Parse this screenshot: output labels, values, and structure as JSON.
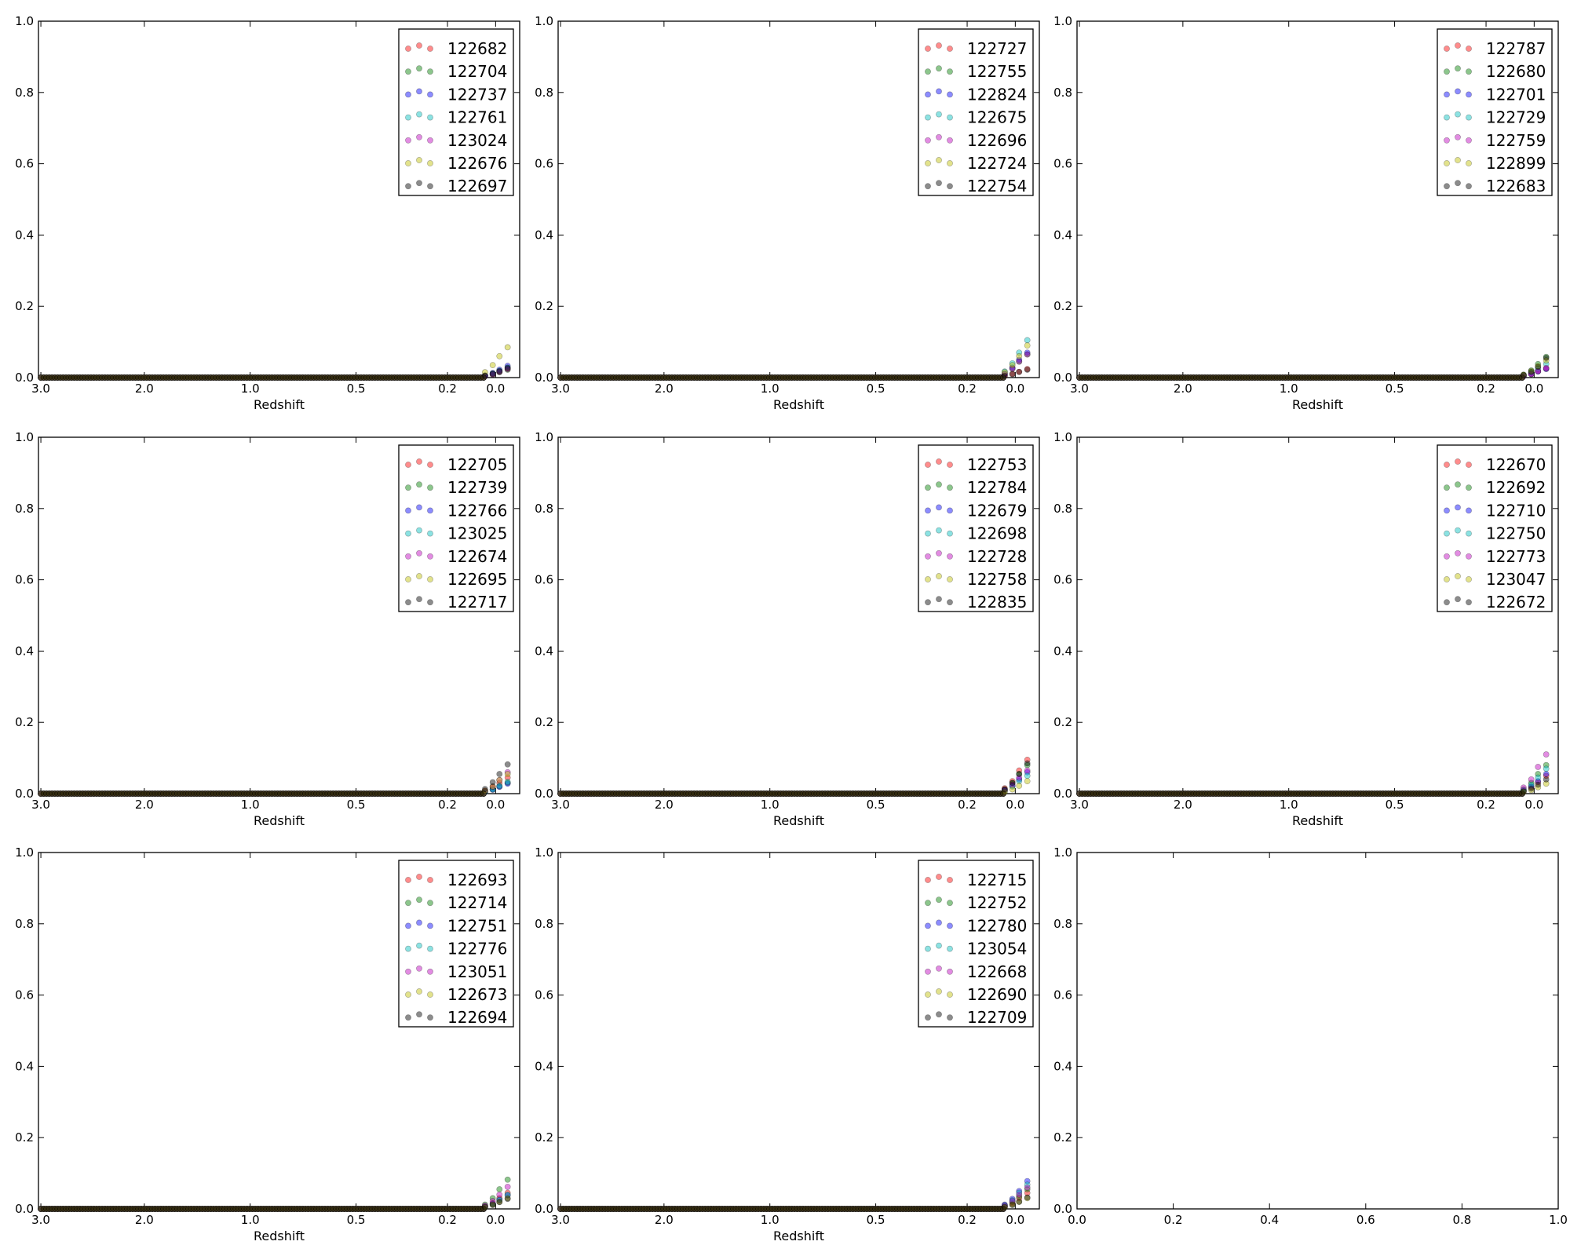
{
  "chart_data": [
    {
      "type": "scatter",
      "xlabel": "Redshift",
      "ylim": [
        0,
        1
      ],
      "x_ticks": [
        "3.0",
        "2.0",
        "1.0",
        "0.5",
        "0.2",
        "0.0"
      ],
      "y_ticks": [
        "0.0",
        "0.2",
        "0.4",
        "0.6",
        "0.8",
        "1.0"
      ],
      "legend": "top-right",
      "series": [
        {
          "name": "122682",
          "color": "#ff0000",
          "values": [
            0.005,
            0.01,
            0.017,
            0.025
          ]
        },
        {
          "name": "122704",
          "color": "#008000",
          "values": [
            0.004,
            0.009,
            0.015,
            0.022
          ]
        },
        {
          "name": "122737",
          "color": "#0000ff",
          "values": [
            0.006,
            0.013,
            0.022,
            0.033
          ]
        },
        {
          "name": "122761",
          "color": "#00bfbf",
          "values": [
            0.005,
            0.011,
            0.019,
            0.028
          ]
        },
        {
          "name": "123024",
          "color": "#bf00bf",
          "values": [
            0.004,
            0.009,
            0.016,
            0.024
          ]
        },
        {
          "name": "122676",
          "color": "#bfbf00",
          "values": [
            0.015,
            0.035,
            0.06,
            0.085
          ]
        },
        {
          "name": "122697",
          "color": "#000000",
          "values": [
            0.005,
            0.011,
            0.018,
            0.027
          ]
        }
      ]
    },
    {
      "type": "scatter",
      "xlabel": "Redshift",
      "ylim": [
        0,
        1
      ],
      "x_ticks": [
        "3.0",
        "2.0",
        "1.0",
        "0.5",
        "0.2",
        "0.0"
      ],
      "y_ticks": [
        "0.0",
        "0.2",
        "0.4",
        "0.6",
        "0.8",
        "1.0"
      ],
      "legend": "top-right",
      "series": [
        {
          "name": "122727",
          "color": "#ff0000",
          "values": [
            0.005,
            0.01,
            0.016,
            0.024
          ]
        },
        {
          "name": "122755",
          "color": "#008000",
          "values": [
            0.01,
            0.025,
            0.045,
            0.065
          ]
        },
        {
          "name": "122824",
          "color": "#0000ff",
          "values": [
            0.011,
            0.028,
            0.05,
            0.07
          ]
        },
        {
          "name": "122675",
          "color": "#00bfbf",
          "values": [
            0.017,
            0.04,
            0.07,
            0.105
          ]
        },
        {
          "name": "122696",
          "color": "#bf00bf",
          "values": [
            0.01,
            0.025,
            0.045,
            0.065
          ]
        },
        {
          "name": "122724",
          "color": "#bfbf00",
          "values": [
            0.015,
            0.035,
            0.06,
            0.09
          ]
        },
        {
          "name": "122754",
          "color": "#000000",
          "values": [
            0.005,
            0.01,
            0.016,
            0.022
          ]
        }
      ]
    },
    {
      "type": "scatter",
      "xlabel": "Redshift",
      "ylim": [
        0,
        1
      ],
      "x_ticks": [
        "3.0",
        "2.0",
        "1.0",
        "0.5",
        "0.2",
        "0.0"
      ],
      "y_ticks": [
        "0.0",
        "0.2",
        "0.4",
        "0.6",
        "0.8",
        "1.0"
      ],
      "legend": "top-right",
      "series": [
        {
          "name": "122787",
          "color": "#ff0000",
          "values": [
            0.004,
            0.01,
            0.018,
            0.025
          ]
        },
        {
          "name": "122680",
          "color": "#008000",
          "values": [
            0.008,
            0.02,
            0.038,
            0.058
          ]
        },
        {
          "name": "122701",
          "color": "#0000ff",
          "values": [
            0.004,
            0.01,
            0.017,
            0.024
          ]
        },
        {
          "name": "122729",
          "color": "#00bfbf",
          "values": [
            0.006,
            0.014,
            0.025,
            0.038
          ]
        },
        {
          "name": "122759",
          "color": "#bf00bf",
          "values": [
            0.005,
            0.01,
            0.018,
            0.027
          ]
        },
        {
          "name": "122899",
          "color": "#bfbf00",
          "values": [
            0.008,
            0.018,
            0.032,
            0.048
          ]
        },
        {
          "name": "122683",
          "color": "#000000",
          "values": [
            0.007,
            0.016,
            0.03,
            0.055
          ]
        }
      ]
    },
    {
      "type": "scatter",
      "xlabel": "Redshift",
      "ylim": [
        0,
        1
      ],
      "x_ticks": [
        "3.0",
        "2.0",
        "1.0",
        "0.5",
        "0.2",
        "0.0"
      ],
      "y_ticks": [
        "0.0",
        "0.2",
        "0.4",
        "0.6",
        "0.8",
        "1.0"
      ],
      "legend": "top-right",
      "series": [
        {
          "name": "122705",
          "color": "#ff0000",
          "values": [
            0.007,
            0.017,
            0.03,
            0.045
          ]
        },
        {
          "name": "122739",
          "color": "#008000",
          "values": [
            0.005,
            0.012,
            0.02,
            0.03
          ]
        },
        {
          "name": "122766",
          "color": "#0000ff",
          "values": [
            0.005,
            0.011,
            0.019,
            0.028
          ]
        },
        {
          "name": "123025",
          "color": "#00bfbf",
          "values": [
            0.005,
            0.012,
            0.022,
            0.033
          ]
        },
        {
          "name": "122674",
          "color": "#bf00bf",
          "values": [
            0.008,
            0.02,
            0.038,
            0.06
          ]
        },
        {
          "name": "122695",
          "color": "#bfbf00",
          "values": [
            0.008,
            0.02,
            0.038,
            0.055
          ]
        },
        {
          "name": "122717",
          "color": "#000000",
          "values": [
            0.013,
            0.032,
            0.055,
            0.082
          ]
        }
      ]
    },
    {
      "type": "scatter",
      "xlabel": "Redshift",
      "ylim": [
        0,
        1
      ],
      "x_ticks": [
        "3.0",
        "2.0",
        "1.0",
        "0.5",
        "0.2",
        "0.0"
      ],
      "y_ticks": [
        "0.0",
        "0.2",
        "0.4",
        "0.6",
        "0.8",
        "1.0"
      ],
      "legend": "top-right",
      "series": [
        {
          "name": "122753",
          "color": "#ff0000",
          "values": [
            0.015,
            0.035,
            0.065,
            0.095
          ]
        },
        {
          "name": "122784",
          "color": "#008000",
          "values": [
            0.012,
            0.03,
            0.055,
            0.08
          ]
        },
        {
          "name": "122679",
          "color": "#0000ff",
          "values": [
            0.009,
            0.022,
            0.04,
            0.06
          ]
        },
        {
          "name": "122698",
          "color": "#00bfbf",
          "values": [
            0.008,
            0.02,
            0.035,
            0.05
          ]
        },
        {
          "name": "122728",
          "color": "#bf00bf",
          "values": [
            0.01,
            0.025,
            0.045,
            0.065
          ]
        },
        {
          "name": "122758",
          "color": "#bfbf00",
          "values": [
            0.005,
            0.012,
            0.022,
            0.035
          ]
        },
        {
          "name": "122835",
          "color": "#000000",
          "values": [
            0.012,
            0.03,
            0.055,
            0.085
          ]
        }
      ]
    },
    {
      "type": "scatter",
      "xlabel": "Redshift",
      "ylim": [
        0,
        1
      ],
      "x_ticks": [
        "3.0",
        "2.0",
        "1.0",
        "0.5",
        "0.2",
        "0.0"
      ],
      "y_ticks": [
        "0.0",
        "0.2",
        "0.4",
        "0.6",
        "0.8",
        "1.0"
      ],
      "legend": "top-right",
      "series": [
        {
          "name": "122670",
          "color": "#ff0000",
          "values": [
            0.008,
            0.018,
            0.032,
            0.05
          ]
        },
        {
          "name": "122692",
          "color": "#008000",
          "values": [
            0.012,
            0.03,
            0.055,
            0.08
          ]
        },
        {
          "name": "122710",
          "color": "#0000ff",
          "values": [
            0.008,
            0.02,
            0.035,
            0.055
          ]
        },
        {
          "name": "122750",
          "color": "#00bfbf",
          "values": [
            0.01,
            0.025,
            0.045,
            0.07
          ]
        },
        {
          "name": "122773",
          "color": "#bf00bf",
          "values": [
            0.017,
            0.04,
            0.075,
            0.11
          ]
        },
        {
          "name": "123047",
          "color": "#bfbf00",
          "values": [
            0.005,
            0.01,
            0.018,
            0.028
          ]
        },
        {
          "name": "122672",
          "color": "#000000",
          "values": [
            0.006,
            0.014,
            0.025,
            0.04
          ]
        }
      ]
    },
    {
      "type": "scatter",
      "xlabel": "Redshift",
      "ylim": [
        0,
        1
      ],
      "x_ticks": [
        "3.0",
        "2.0",
        "1.0",
        "0.5",
        "0.2",
        "0.0"
      ],
      "y_ticks": [
        "0.0",
        "0.2",
        "0.4",
        "0.6",
        "0.8",
        "1.0"
      ],
      "legend": "top-right",
      "series": [
        {
          "name": "122693",
          "color": "#ff0000",
          "values": [
            0.007,
            0.016,
            0.03,
            0.045
          ]
        },
        {
          "name": "122714",
          "color": "#008000",
          "values": [
            0.012,
            0.03,
            0.055,
            0.082
          ]
        },
        {
          "name": "122751",
          "color": "#0000ff",
          "values": [
            0.006,
            0.014,
            0.025,
            0.038
          ]
        },
        {
          "name": "122776",
          "color": "#00bfbf",
          "values": [
            0.006,
            0.014,
            0.026,
            0.04
          ]
        },
        {
          "name": "123051",
          "color": "#bf00bf",
          "values": [
            0.009,
            0.022,
            0.04,
            0.062
          ]
        },
        {
          "name": "122673",
          "color": "#bfbf00",
          "values": [
            0.005,
            0.012,
            0.02,
            0.03
          ]
        },
        {
          "name": "122694",
          "color": "#000000",
          "values": [
            0.005,
            0.011,
            0.019,
            0.028
          ]
        }
      ]
    },
    {
      "type": "scatter",
      "xlabel": "Redshift",
      "ylim": [
        0,
        1
      ],
      "x_ticks": [
        "3.0",
        "2.0",
        "1.0",
        "0.5",
        "0.2",
        "0.0"
      ],
      "y_ticks": [
        "0.0",
        "0.2",
        "0.4",
        "0.6",
        "0.8",
        "1.0"
      ],
      "legend": "top-right",
      "series": [
        {
          "name": "122715",
          "color": "#ff0000",
          "values": [
            0.007,
            0.016,
            0.03,
            0.045
          ]
        },
        {
          "name": "122752",
          "color": "#008000",
          "values": [
            0.008,
            0.02,
            0.035,
            0.055
          ]
        },
        {
          "name": "122780",
          "color": "#0000ff",
          "values": [
            0.012,
            0.028,
            0.05,
            0.078
          ]
        },
        {
          "name": "123054",
          "color": "#00bfbf",
          "values": [
            0.01,
            0.024,
            0.045,
            0.068
          ]
        },
        {
          "name": "122668",
          "color": "#bf00bf",
          "values": [
            0.009,
            0.022,
            0.04,
            0.06
          ]
        },
        {
          "name": "122690",
          "color": "#bfbf00",
          "values": [
            0.005,
            0.012,
            0.02,
            0.03
          ]
        },
        {
          "name": "122709",
          "color": "#000000",
          "values": [
            0.005,
            0.011,
            0.02,
            0.032
          ]
        }
      ]
    },
    {
      "type": "scatter",
      "xlabel": "",
      "ylim": [
        0,
        1
      ],
      "xlim": [
        0,
        1
      ],
      "x_ticks": [
        "0.0",
        "0.2",
        "0.4",
        "0.6",
        "0.8",
        "1.0"
      ],
      "y_ticks": [
        "0.0",
        "0.2",
        "0.4",
        "0.6",
        "0.8",
        "1.0"
      ],
      "series": []
    }
  ]
}
